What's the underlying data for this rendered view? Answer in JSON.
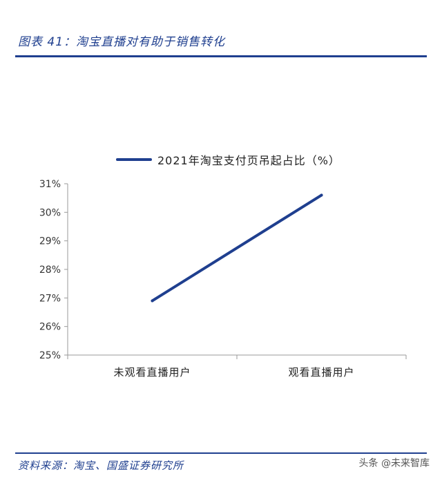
{
  "figure": {
    "title": "图表 41：淘宝直播对有助于销售转化",
    "source": "资料来源：淘宝、国盛证券研究所",
    "watermark": "头条 @未来智库"
  },
  "colors": {
    "accent": "#1f3f8f",
    "axis": "#999999"
  },
  "chart_data": {
    "type": "line",
    "title": "",
    "xlabel": "",
    "ylabel": "",
    "categories": [
      "未观看直播用户",
      "观看直播用户"
    ],
    "series": [
      {
        "name": "2021年淘宝支付页吊起占比（%）",
        "values": [
          26.9,
          30.6
        ]
      }
    ],
    "ylim": [
      25,
      31
    ],
    "yticks": [
      25,
      26,
      27,
      28,
      29,
      30,
      31
    ],
    "ytick_format": "%",
    "grid": false,
    "legend": "top"
  }
}
